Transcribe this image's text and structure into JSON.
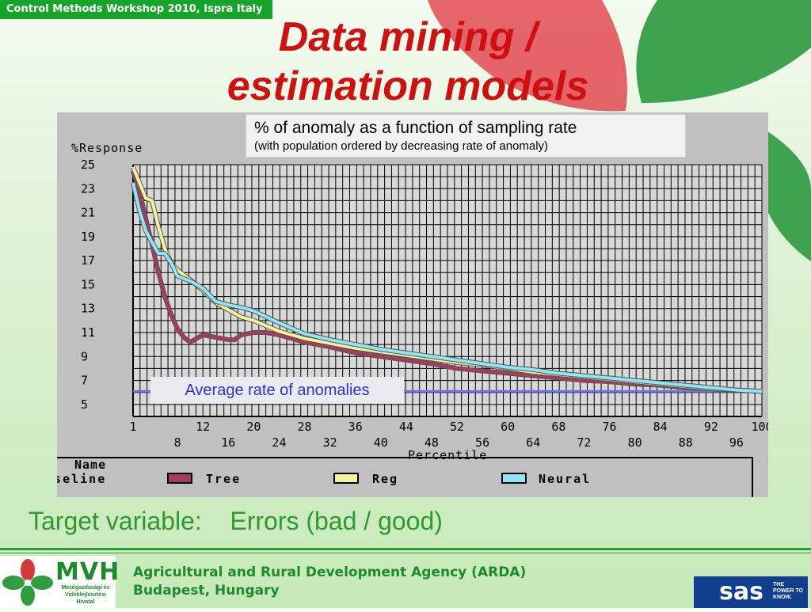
{
  "header": {
    "workshop": "Control Methods Workshop 2010, Ispra Italy",
    "title_line1": "Data mining /",
    "title_line2": "estimation models"
  },
  "caption": {
    "main": "% of anomaly as a function of sampling rate",
    "sub": "(with population ordered by decreasing rate of anomaly)"
  },
  "average_label": "Average rate of anomalies",
  "target": {
    "label": "Target variable:",
    "value": "Errors (bad / good)"
  },
  "footer": {
    "mvh_name": "MVH",
    "mvh_sub": "Mezőgazdasági és Vidékfejlesztési Hivatal",
    "agency_line1": "Agricultural and Rural Development Agency (ARDA)",
    "agency_line2": "Budapest, Hungary",
    "sas_word": "sas",
    "sas_tag": "THE POWER TO KNOW."
  },
  "colors": {
    "title": "#d01010",
    "tree": "#a83a5c",
    "reg": "#f6f29a",
    "neural": "#8de6f6",
    "baseline": "#6f6fe6",
    "brand_green": "#1d8a2d"
  },
  "chart_data": {
    "type": "line",
    "ylabel": "%Response",
    "xlabel": "Percentile",
    "xlim": [
      1,
      100
    ],
    "ylim": [
      4,
      25
    ],
    "y_ticks": [
      25,
      23,
      21,
      19,
      17,
      15,
      13,
      11,
      9,
      7,
      5
    ],
    "x_ticks_top": [
      "1",
      "12",
      "20",
      "28",
      "36",
      "44",
      "52",
      "60",
      "68",
      "76",
      "84",
      "92",
      "100"
    ],
    "x_ticks_top_values": [
      1,
      12,
      20,
      28,
      36,
      44,
      52,
      60,
      68,
      76,
      84,
      92,
      100
    ],
    "x_ticks_bottom": [
      "8",
      "16",
      "24",
      "32",
      "40",
      "48",
      "56",
      "64",
      "72",
      "80",
      "88",
      "96"
    ],
    "x_ticks_bottom_values": [
      8,
      16,
      24,
      32,
      40,
      48,
      56,
      64,
      72,
      80,
      88,
      96
    ],
    "legend_title": "Name",
    "legend_position": "bottom",
    "grid": true,
    "series": [
      {
        "name": "Baseline",
        "color": "#6f6fe6",
        "x": [
          1,
          100
        ],
        "y": [
          6.1,
          6.1
        ]
      },
      {
        "name": "Tree",
        "color": "#a83a5c",
        "x": [
          1,
          2,
          3,
          4,
          5,
          6,
          7,
          8,
          9,
          10,
          12,
          14,
          16,
          17,
          18,
          20,
          22,
          24,
          28,
          32,
          36,
          40,
          44,
          48,
          52,
          56,
          60,
          64,
          68,
          72,
          76,
          80,
          84,
          88,
          92,
          96,
          100
        ],
        "y": [
          24.5,
          22.8,
          20.5,
          18.3,
          16.0,
          14.0,
          12.5,
          11.3,
          10.6,
          10.2,
          10.8,
          10.6,
          10.4,
          10.4,
          10.8,
          11.0,
          11.0,
          10.8,
          10.2,
          9.8,
          9.3,
          9.0,
          8.7,
          8.4,
          8.0,
          7.8,
          7.6,
          7.4,
          7.2,
          7.0,
          6.9,
          6.7,
          6.6,
          6.4,
          6.3,
          6.2,
          6.1
        ]
      },
      {
        "name": "Reg",
        "color": "#f6f29a",
        "x": [
          1,
          2,
          3,
          4,
          5,
          6,
          7,
          8,
          10,
          12,
          14,
          16,
          18,
          20,
          24,
          28,
          32,
          36,
          40,
          44,
          48,
          52,
          56,
          60,
          64,
          68,
          72,
          76,
          80,
          84,
          88,
          92,
          96,
          100
        ],
        "y": [
          24.8,
          23.5,
          22.2,
          22.0,
          19.8,
          18.0,
          16.8,
          16.2,
          15.4,
          14.5,
          13.5,
          12.9,
          12.3,
          12.0,
          11.1,
          10.5,
          10.1,
          9.7,
          9.4,
          9.1,
          8.8,
          8.5,
          8.3,
          8.0,
          7.7,
          7.5,
          7.3,
          7.1,
          6.9,
          6.7,
          6.5,
          6.3,
          6.2,
          6.1
        ]
      },
      {
        "name": "Neural",
        "color": "#8de6f6",
        "x": [
          1,
          2,
          3,
          4,
          5,
          6,
          7,
          8,
          10,
          12,
          14,
          16,
          18,
          20,
          24,
          28,
          32,
          36,
          40,
          44,
          48,
          52,
          56,
          60,
          64,
          68,
          72,
          76,
          80,
          84,
          88,
          92,
          96,
          100
        ],
        "y": [
          23.5,
          21.2,
          19.5,
          18.5,
          17.6,
          17.6,
          16.8,
          15.7,
          15.3,
          14.7,
          13.6,
          13.3,
          13.1,
          12.8,
          11.8,
          10.9,
          10.4,
          10.0,
          9.6,
          9.3,
          9.0,
          8.7,
          8.4,
          8.1,
          7.9,
          7.6,
          7.4,
          7.2,
          7.0,
          6.8,
          6.6,
          6.4,
          6.2,
          6.1
        ]
      }
    ]
  }
}
